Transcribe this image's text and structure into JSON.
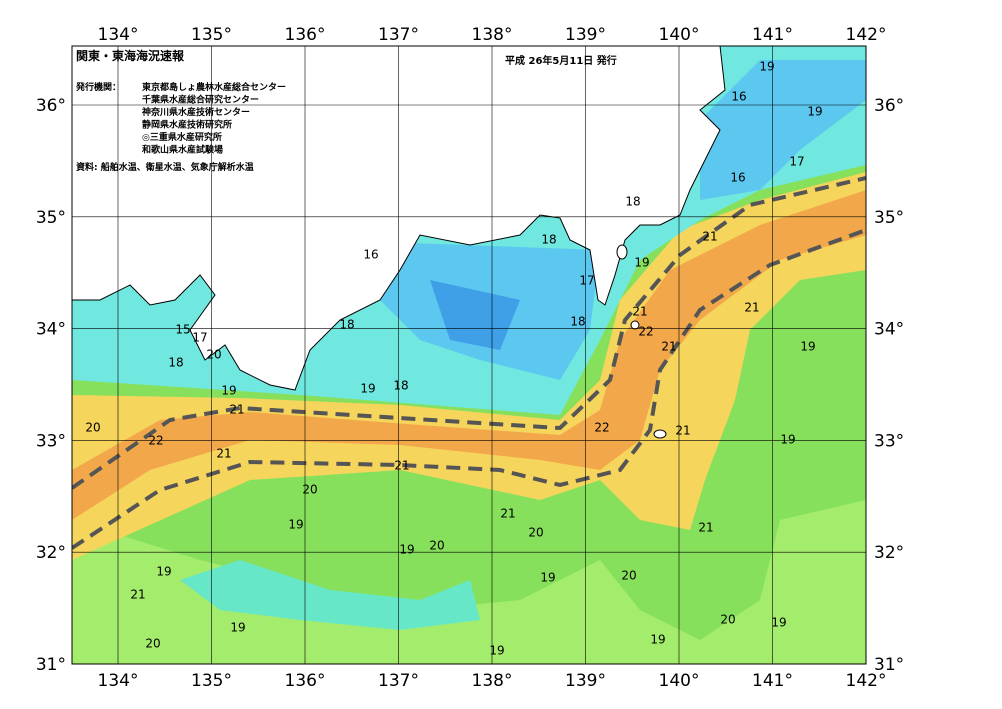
{
  "header": {
    "title": "関東・東海海況速報",
    "date": "平成 26年5月11日 発行",
    "issuer_label": "発行機関：",
    "issuers": [
      "東京都島しょ農林水産総合センター",
      "千葉県水産総合研究センター",
      "神奈川県水産技術センター",
      "静岡県水産技術研究所",
      "◎三重県水産研究所",
      "和歌山県水産試験場"
    ],
    "source": "資料: 船舶水温、衛星水温、気象庁解析水温"
  },
  "map": {
    "lon_labels": [
      "134°",
      "135°",
      "136°",
      "137°",
      "138°",
      "139°",
      "140°",
      "141°",
      "142°"
    ],
    "lat_labels": [
      "36°",
      "35°",
      "34°",
      "33°",
      "32°",
      "31°"
    ],
    "contour_labels": [
      19,
      16,
      19,
      17,
      16,
      18,
      21,
      18,
      16,
      19,
      17,
      21,
      18,
      22,
      21,
      18,
      21,
      19,
      15,
      17,
      18,
      20,
      19,
      18,
      19,
      21,
      20,
      22,
      22,
      21,
      19,
      21,
      21,
      20,
      19,
      21,
      20,
      21,
      19,
      20,
      19,
      20,
      19,
      21,
      20,
      19,
      19,
      20,
      19,
      19
    ]
  }
}
